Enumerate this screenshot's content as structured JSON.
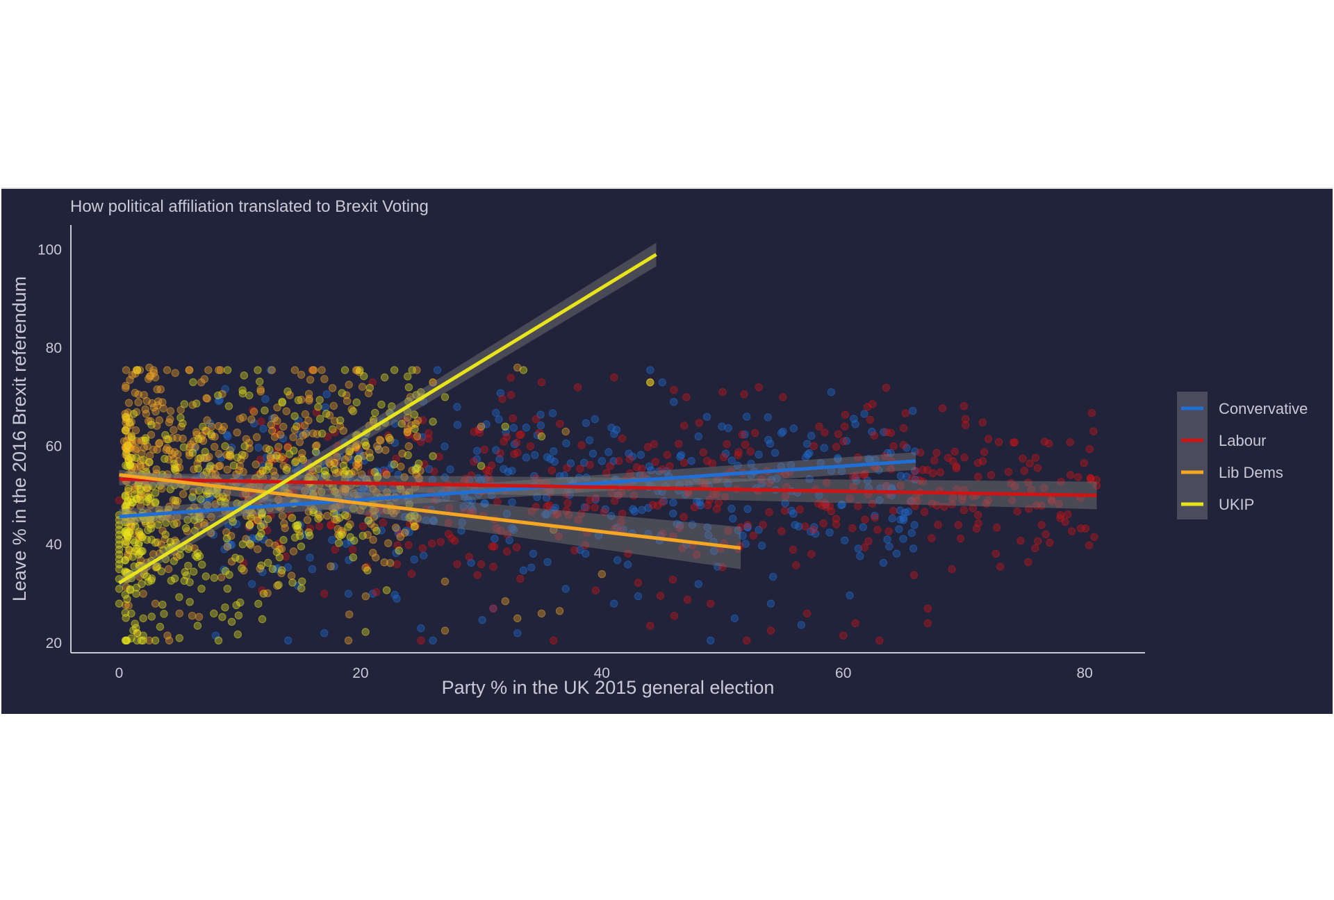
{
  "chart_data": {
    "type": "scatter",
    "title": "How political affiliation translated to Brexit Voting",
    "xlabel": "Party % in the UK 2015 general election",
    "ylabel": "Leave % in the 2016 Brexit referendum",
    "xlim": [
      -4,
      85
    ],
    "ylim": [
      18,
      105
    ],
    "xticks": [
      "0",
      "20",
      "40",
      "60",
      "80"
    ],
    "yticks": [
      "20",
      "40",
      "60",
      "80",
      "100"
    ],
    "legend_position": "right",
    "background": "#21233a",
    "series": [
      {
        "name": "Convervative",
        "color": "#1f6fd6",
        "cloud": {
          "x_range": [
            6,
            66
          ],
          "center_y": 52,
          "spread_y": 9,
          "n": 420
        },
        "points": [
          [
            44,
            75.5
          ],
          [
            59,
            71
          ],
          [
            61,
            64.5
          ],
          [
            45,
            73
          ],
          [
            9,
            62
          ],
          [
            55,
            63
          ],
          [
            57,
            60.5
          ],
          [
            28,
            68
          ],
          [
            36,
            59
          ],
          [
            40,
            57
          ],
          [
            48,
            62
          ],
          [
            52,
            66
          ],
          [
            58,
            50
          ],
          [
            63,
            49
          ],
          [
            65,
            45
          ],
          [
            11,
            32
          ],
          [
            13,
            35
          ],
          [
            16,
            35
          ],
          [
            19,
            30
          ],
          [
            21,
            30
          ],
          [
            25,
            23
          ],
          [
            31,
            27
          ],
          [
            37,
            31
          ],
          [
            41,
            28
          ],
          [
            43,
            29.5
          ],
          [
            48,
            32
          ],
          [
            51,
            25
          ],
          [
            54,
            28
          ],
          [
            49,
            20.5
          ],
          [
            33,
            22
          ],
          [
            26,
            20.5
          ],
          [
            14,
            20.5
          ],
          [
            17,
            22
          ],
          [
            8,
            21.5
          ],
          [
            23,
            29
          ],
          [
            36,
            47
          ],
          [
            47,
            40
          ],
          [
            53,
            43
          ],
          [
            56,
            44
          ],
          [
            59,
            55
          ],
          [
            62,
            53
          ],
          [
            64,
            50
          ],
          [
            12,
            41
          ],
          [
            15,
            44
          ],
          [
            18,
            46
          ]
        ],
        "fit": {
          "x": [
            0,
            66
          ],
          "y": [
            45.7,
            57
          ],
          "ci": [
            1.5,
            1.8
          ]
        }
      },
      {
        "name": "Labour",
        "color": "#d01414",
        "cloud": {
          "x_range": [
            10,
            81
          ],
          "center_y": 52,
          "spread_y": 9,
          "n": 460
        },
        "points": [
          [
            0,
            49
          ],
          [
            16,
            75.5
          ],
          [
            41,
            74
          ],
          [
            47,
            70
          ],
          [
            62,
            68
          ],
          [
            58,
            64
          ],
          [
            73,
            35.5
          ],
          [
            75,
            55
          ],
          [
            78,
            46
          ],
          [
            81,
            52
          ],
          [
            69,
            35
          ],
          [
            67,
            24
          ],
          [
            67,
            27
          ],
          [
            61,
            24
          ],
          [
            60,
            21.5
          ],
          [
            63,
            20.5
          ],
          [
            70,
            47
          ],
          [
            72,
            49
          ],
          [
            54,
            22.5
          ],
          [
            57,
            26
          ],
          [
            52,
            20.5
          ],
          [
            49,
            28
          ],
          [
            46,
            25.5
          ],
          [
            44,
            23.5
          ],
          [
            36,
            20.5
          ],
          [
            31,
            27
          ],
          [
            30,
            36
          ],
          [
            31,
            35.5
          ],
          [
            29,
            37.5
          ],
          [
            25,
            20.5
          ],
          [
            17,
            30
          ],
          [
            14,
            60
          ],
          [
            21,
            73
          ],
          [
            26,
            73
          ],
          [
            35,
            73
          ],
          [
            38,
            72
          ],
          [
            50,
            71
          ],
          [
            53,
            72
          ],
          [
            55,
            70
          ],
          [
            64,
            57
          ],
          [
            66,
            55
          ],
          [
            68,
            51
          ],
          [
            71,
            50
          ],
          [
            74,
            49
          ],
          [
            76,
            48
          ]
        ],
        "fit": {
          "x": [
            0,
            81
          ],
          "y": [
            53.3,
            50
          ],
          "ci": [
            1.2,
            2.8
          ]
        }
      },
      {
        "name": "Lib Dems",
        "color": "#f5a623",
        "cloud": {
          "x_range": [
            0.5,
            25
          ],
          "center_y": 55,
          "spread_y": 12,
          "n": 560
        },
        "points": [
          [
            2.5,
            76
          ],
          [
            3,
            74
          ],
          [
            6.8,
            73
          ],
          [
            0.4,
            61
          ],
          [
            3.3,
            60.5
          ],
          [
            0.8,
            39
          ],
          [
            1,
            44
          ],
          [
            2,
            30
          ],
          [
            3,
            28
          ],
          [
            5,
            26
          ],
          [
            1.5,
            22
          ],
          [
            4,
            21.5
          ],
          [
            2.5,
            20.5
          ],
          [
            19,
            20.5
          ],
          [
            27,
            22.5
          ],
          [
            27,
            32.5
          ],
          [
            33,
            25
          ],
          [
            35,
            26
          ],
          [
            36.5,
            26.5
          ],
          [
            36,
            43
          ],
          [
            40,
            34
          ],
          [
            32,
            28.5
          ],
          [
            44,
            73
          ],
          [
            33,
            76
          ],
          [
            30,
            64
          ],
          [
            37,
            63
          ],
          [
            24,
            60
          ],
          [
            25,
            70
          ],
          [
            20,
            47
          ],
          [
            12,
            44
          ]
        ],
        "fit": {
          "x": [
            0,
            51.5
          ],
          "y": [
            54.2,
            39.3
          ],
          "ci": [
            1.0,
            4.3
          ]
        }
      },
      {
        "name": "UKIP",
        "color": "#e8e41b",
        "cloud": {
          "x_range": [
            0.5,
            25
          ],
          "center_y": 50,
          "spread_y": 14,
          "n": 440
        },
        "points": [
          [
            0,
            35
          ],
          [
            0,
            36
          ],
          [
            0,
            37
          ],
          [
            0,
            38
          ],
          [
            0,
            39
          ],
          [
            0,
            40
          ],
          [
            0,
            41
          ],
          [
            0,
            42
          ],
          [
            0,
            43
          ],
          [
            0,
            44
          ],
          [
            0,
            45
          ],
          [
            0,
            46
          ],
          [
            0,
            28
          ],
          [
            0,
            31
          ],
          [
            0,
            33
          ],
          [
            1.5,
            22
          ],
          [
            2,
            21.5
          ],
          [
            3,
            20.5
          ],
          [
            5,
            21
          ],
          [
            1,
            26
          ],
          [
            2,
            25
          ],
          [
            22,
            74
          ],
          [
            24,
            72
          ],
          [
            25,
            71
          ],
          [
            26,
            73
          ],
          [
            27,
            70
          ],
          [
            33.5,
            75.5
          ],
          [
            44,
            73
          ],
          [
            26,
            65
          ],
          [
            32,
            64
          ],
          [
            35,
            62
          ],
          [
            30,
            56
          ],
          [
            26,
            58
          ]
        ],
        "fit": {
          "x": [
            0,
            44.5
          ],
          "y": [
            32.2,
            99
          ],
          "ci": [
            1.0,
            2.4
          ]
        }
      }
    ]
  }
}
